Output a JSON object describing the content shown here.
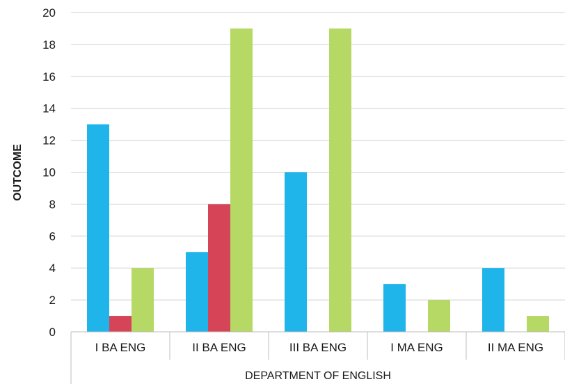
{
  "chart_data": {
    "type": "bar",
    "title": "",
    "xlabel": "DEPARTMENT OF ENGLISH",
    "ylabel": "OUTCOME",
    "ylim": [
      0,
      20
    ],
    "yticks": [
      0,
      2,
      4,
      6,
      8,
      10,
      12,
      14,
      16,
      18,
      20
    ],
    "grid": true,
    "legend": "none",
    "categories": [
      "I BA ENG",
      "II BA ENG",
      "III BA ENG",
      "I MA ENG",
      "II MA ENG"
    ],
    "series": [
      {
        "color": "#1fb4ea",
        "values": [
          13,
          5,
          10,
          3,
          4
        ]
      },
      {
        "color": "#d64557",
        "values": [
          1,
          8,
          0,
          0,
          0
        ]
      },
      {
        "color": "#b6d865",
        "values": [
          4,
          19,
          19,
          2,
          1
        ]
      }
    ]
  }
}
